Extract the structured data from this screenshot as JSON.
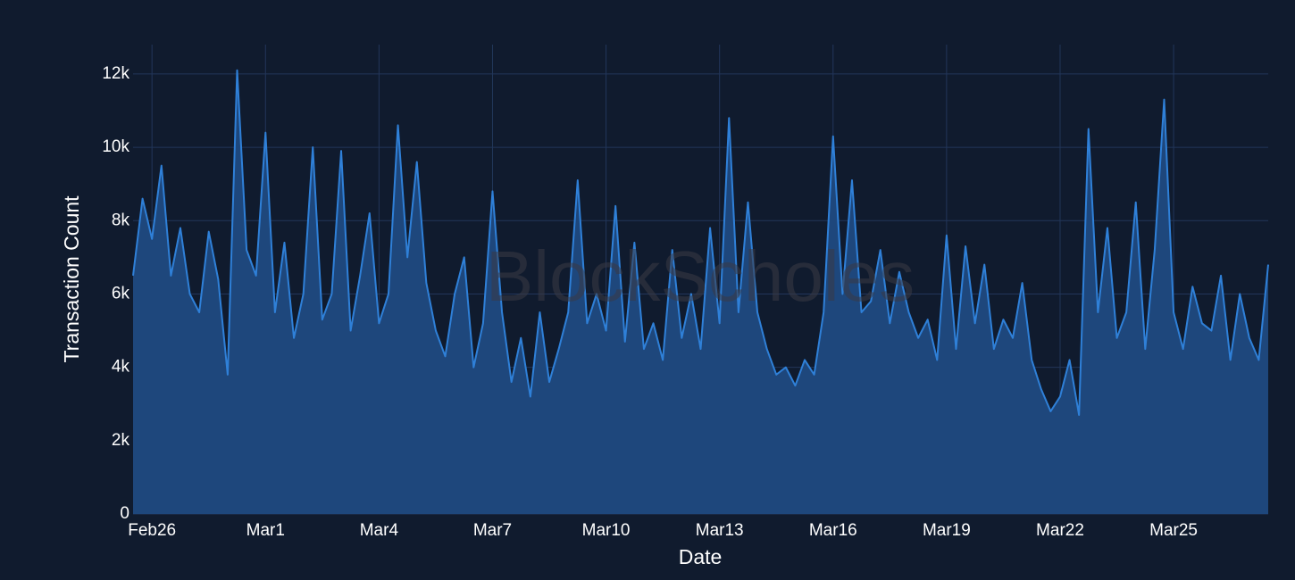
{
  "chart_data": {
    "type": "area",
    "watermark": "BlockScholes",
    "xlabel": "Date",
    "ylabel": "Transaction Count",
    "categories": [
      null,
      null,
      "Feb26",
      null,
      null,
      null,
      null,
      null,
      null,
      null,
      null,
      null,
      null,
      null,
      "Mar1",
      null,
      null,
      null,
      null,
      null,
      null,
      null,
      null,
      null,
      null,
      null,
      "Mar4",
      null,
      null,
      null,
      null,
      null,
      null,
      null,
      null,
      null,
      null,
      null,
      "Mar7",
      null,
      null,
      null,
      null,
      null,
      null,
      null,
      null,
      null,
      null,
      null,
      "Mar10",
      null,
      null,
      null,
      null,
      null,
      null,
      null,
      null,
      null,
      null,
      null,
      "Mar13",
      null,
      null,
      null,
      null,
      null,
      null,
      null,
      null,
      null,
      null,
      null,
      "Mar16",
      null,
      null,
      null,
      null,
      null,
      null,
      null,
      null,
      null,
      null,
      null,
      "Mar19",
      null,
      null,
      null,
      null,
      null,
      null,
      null,
      null,
      null,
      null,
      null,
      "Mar22",
      null,
      null,
      null,
      null,
      null,
      null,
      null,
      null,
      null,
      null,
      null,
      "Mar25",
      null,
      null,
      null,
      null,
      null,
      null,
      null,
      null,
      null,
      null
    ],
    "values": [
      6500,
      8600,
      7500,
      9500,
      6500,
      7800,
      6000,
      5500,
      7700,
      6400,
      3800,
      12100,
      7200,
      6500,
      10400,
      5500,
      7400,
      4800,
      6000,
      10000,
      5300,
      6000,
      9900,
      5000,
      6500,
      8200,
      5200,
      6000,
      10600,
      7000,
      9600,
      6300,
      5000,
      4300,
      6000,
      7000,
      4000,
      5200,
      8800,
      5500,
      3600,
      4800,
      3200,
      5500,
      3600,
      4500,
      5500,
      9100,
      5200,
      6000,
      5000,
      8400,
      4700,
      7400,
      4500,
      5200,
      4200,
      7200,
      4800,
      6000,
      4500,
      7800,
      5200,
      10800,
      5500,
      8500,
      5500,
      4500,
      3800,
      4000,
      3500,
      4200,
      3800,
      5500,
      10300,
      6000,
      9100,
      5500,
      5800,
      7200,
      5200,
      6600,
      5500,
      4800,
      5300,
      4200,
      7600,
      4500,
      7300,
      5200,
      6800,
      4500,
      5300,
      4800,
      6300,
      4200,
      3400,
      2800,
      3200,
      4200,
      2700,
      10500,
      5500,
      7800,
      4800,
      5500,
      8500,
      4500,
      7200,
      11300,
      5500,
      4500,
      6200,
      5200,
      5000,
      6500,
      4200,
      6000,
      4800,
      4200,
      6800
    ],
    "color": "#2f80d8",
    "fill_color": "#1e477c",
    "ylim": [
      0,
      12800
    ],
    "yticks": [
      0,
      {
        "value": 2000,
        "label": "2k"
      },
      {
        "value": 4000,
        "label": "4k"
      },
      {
        "value": 6000,
        "label": "6k"
      },
      {
        "value": 8000,
        "label": "8k"
      },
      {
        "value": 10000,
        "label": "10k"
      },
      {
        "value": 12000,
        "label": "12k"
      }
    ],
    "grid": true
  }
}
